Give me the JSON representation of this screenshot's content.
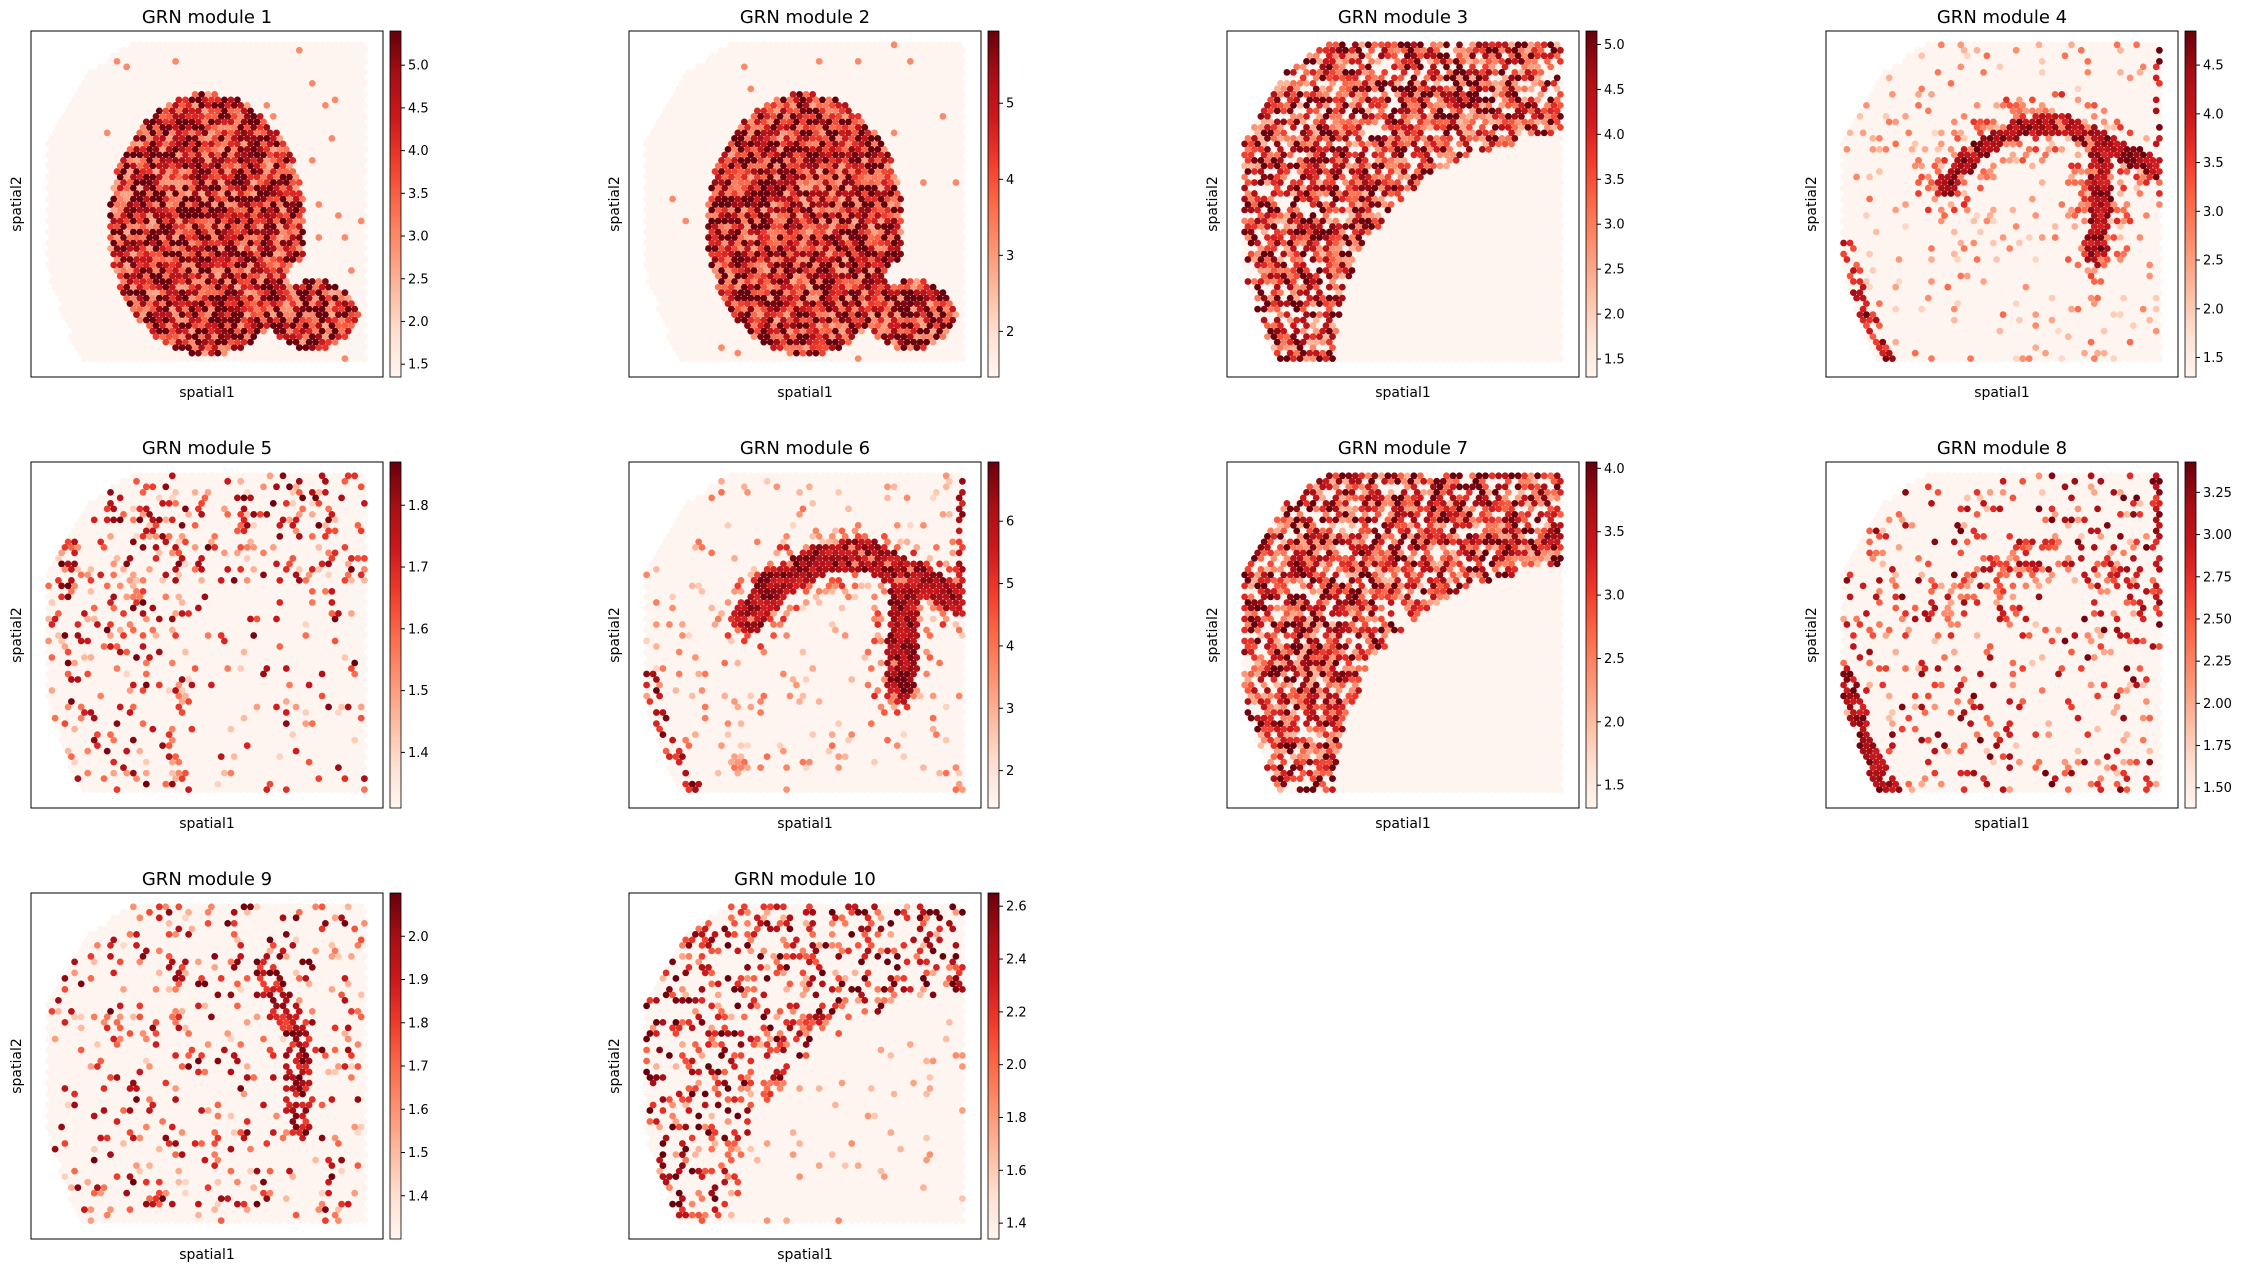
{
  "figure": {
    "colormap": "Reds",
    "colormap_stops": [
      "#fff5f0",
      "#fee0d2",
      "#fcbba1",
      "#fc9272",
      "#fb6a4a",
      "#ef3b2c",
      "#cb181d",
      "#a50f15",
      "#67000d"
    ],
    "background_spot_color": "#fff5f0"
  },
  "chart_data": [
    {
      "type": "scatter",
      "title": "GRN module 1",
      "xlabel": "spatial1",
      "ylabel": "spatial2",
      "colorbar": {
        "min": 1.35,
        "max": 5.4,
        "ticks": [
          1.5,
          2.0,
          2.5,
          3.0,
          3.5,
          4.0,
          4.5,
          5.0
        ],
        "tick_labels": [
          "1.5",
          "2.0",
          "2.5",
          "3.0",
          "3.5",
          "4.0",
          "4.5",
          "5.0"
        ]
      },
      "pattern": "blob"
    },
    {
      "type": "scatter",
      "title": "GRN module 2",
      "xlabel": "spatial1",
      "ylabel": "spatial2",
      "colorbar": {
        "min": 1.4,
        "max": 5.95,
        "ticks": [
          2,
          3,
          4,
          5
        ],
        "tick_labels": [
          "2",
          "3",
          "4",
          "5"
        ]
      },
      "pattern": "blob"
    },
    {
      "type": "scatter",
      "title": "GRN module 3",
      "xlabel": "spatial1",
      "ylabel": "spatial2",
      "colorbar": {
        "min": 1.3,
        "max": 5.15,
        "ticks": [
          1.5,
          2.0,
          2.5,
          3.0,
          3.5,
          4.0,
          4.5,
          5.0
        ],
        "tick_labels": [
          "1.5",
          "2.0",
          "2.5",
          "3.0",
          "3.5",
          "4.0",
          "4.5",
          "5.0"
        ]
      },
      "pattern": "arc"
    },
    {
      "type": "scatter",
      "title": "GRN module 4",
      "xlabel": "spatial1",
      "ylabel": "spatial2",
      "colorbar": {
        "min": 1.3,
        "max": 4.85,
        "ticks": [
          1.5,
          2.0,
          2.5,
          3.0,
          3.5,
          4.0,
          4.5
        ],
        "tick_labels": [
          "1.5",
          "2.0",
          "2.5",
          "3.0",
          "3.5",
          "4.0",
          "4.5"
        ]
      },
      "pattern": "vessel"
    },
    {
      "type": "scatter",
      "title": "GRN module 5",
      "xlabel": "spatial1",
      "ylabel": "spatial2",
      "colorbar": {
        "min": 1.31,
        "max": 1.87,
        "ticks": [
          1.4,
          1.5,
          1.6,
          1.7,
          1.8
        ],
        "tick_labels": [
          "1.4",
          "1.5",
          "1.6",
          "1.7",
          "1.8"
        ]
      },
      "pattern": "sparse"
    },
    {
      "type": "scatter",
      "title": "GRN module 6",
      "xlabel": "spatial1",
      "ylabel": "spatial2",
      "colorbar": {
        "min": 1.4,
        "max": 6.95,
        "ticks": [
          2,
          3,
          4,
          5,
          6
        ],
        "tick_labels": [
          "2",
          "3",
          "4",
          "5",
          "6"
        ]
      },
      "pattern": "vessel_dense"
    },
    {
      "type": "scatter",
      "title": "GRN module 7",
      "xlabel": "spatial1",
      "ylabel": "spatial2",
      "colorbar": {
        "min": 1.32,
        "max": 4.05,
        "ticks": [
          1.5,
          2.0,
          2.5,
          3.0,
          3.5,
          4.0
        ],
        "tick_labels": [
          "1.5",
          "2.0",
          "2.5",
          "3.0",
          "3.5",
          "4.0"
        ]
      },
      "pattern": "arc"
    },
    {
      "type": "scatter",
      "title": "GRN module 8",
      "xlabel": "spatial1",
      "ylabel": "spatial2",
      "colorbar": {
        "min": 1.38,
        "max": 3.43,
        "ticks": [
          1.5,
          1.75,
          2.0,
          2.25,
          2.5,
          2.75,
          3.0,
          3.25
        ],
        "tick_labels": [
          "1.50",
          "1.75",
          "2.00",
          "2.25",
          "2.50",
          "2.75",
          "3.00",
          "3.25"
        ]
      },
      "pattern": "vessel_sparse"
    },
    {
      "type": "scatter",
      "title": "GRN module 9",
      "xlabel": "spatial1",
      "ylabel": "spatial2",
      "colorbar": {
        "min": 1.3,
        "max": 2.1,
        "ticks": [
          1.4,
          1.5,
          1.6,
          1.7,
          1.8,
          1.9,
          2.0
        ],
        "tick_labels": [
          "1.4",
          "1.5",
          "1.6",
          "1.7",
          "1.8",
          "1.9",
          "2.0"
        ]
      },
      "pattern": "sparse_vessel"
    },
    {
      "type": "scatter",
      "title": "GRN module 10",
      "xlabel": "spatial1",
      "ylabel": "spatial2",
      "colorbar": {
        "min": 1.34,
        "max": 2.65,
        "ticks": [
          1.4,
          1.6,
          1.8,
          2.0,
          2.2,
          2.4,
          2.6
        ],
        "tick_labels": [
          "1.4",
          "1.6",
          "1.8",
          "2.0",
          "2.2",
          "2.4",
          "2.6"
        ]
      },
      "pattern": "arc_sparse"
    }
  ]
}
